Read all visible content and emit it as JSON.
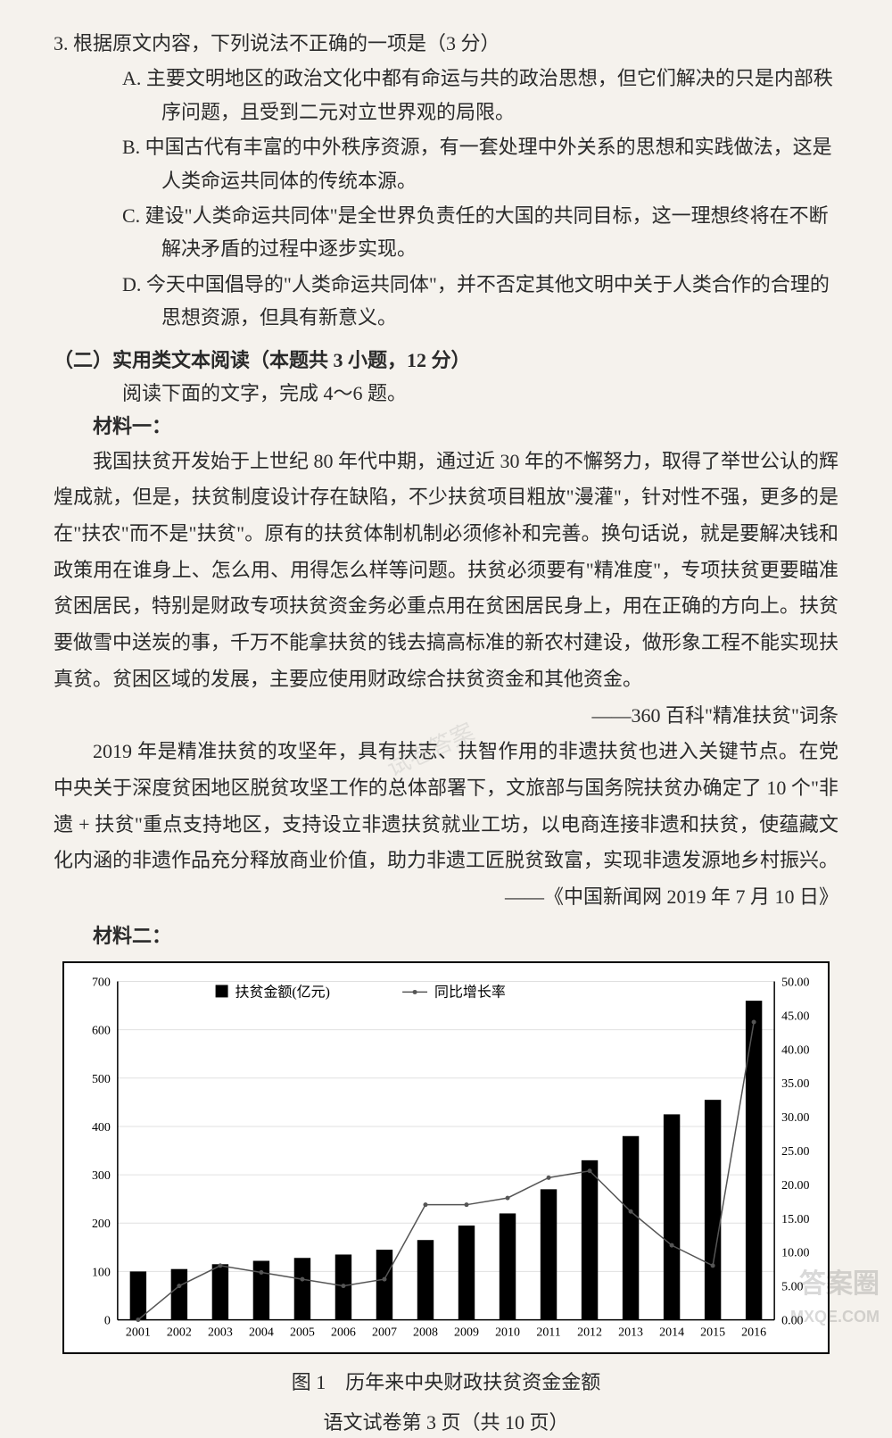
{
  "q3": {
    "stem": "3. 根据原文内容，下列说法不正确的一项是（3 分）",
    "A": "A. 主要文明地区的政治文化中都有命运与共的政治思想，但它们解决的只是内部秩序问题，且受到二元对立世界观的局限。",
    "B": "B. 中国古代有丰富的中外秩序资源，有一套处理中外关系的思想和实践做法，这是人类命运共同体的传统本源。",
    "C": "C. 建设\"人类命运共同体\"是全世界负责任的大国的共同目标，这一理想终将在不断解决矛盾的过程中逐步实现。",
    "D": "D. 今天中国倡导的\"人类命运共同体\"，并不否定其他文明中关于人类合作的合理的思想资源，但具有新意义。"
  },
  "section2": {
    "title": "（二）实用类文本阅读（本题共 3 小题，12 分）",
    "instr": "阅读下面的文字，完成 4～6 题。",
    "m1_label": "材料一：",
    "m1_p1": "我国扶贫开发始于上世纪 80 年代中期，通过近 30 年的不懈努力，取得了举世公认的辉煌成就，但是，扶贫制度设计存在缺陷，不少扶贫项目粗放\"漫灌\"，针对性不强，更多的是在\"扶农\"而不是\"扶贫\"。原有的扶贫体制机制必须修补和完善。换句话说，就是要解决钱和政策用在谁身上、怎么用、用得怎么样等问题。扶贫必须要有\"精准度\"，专项扶贫更要瞄准贫困居民，特别是财政专项扶贫资金务必重点用在贫困居民身上，用在正确的方向上。扶贫要做雪中送炭的事，千万不能拿扶贫的钱去搞高标准的新农村建设，做形象工程不能实现扶真贫。贫困区域的发展，主要应使用财政综合扶贫资金和其他资金。",
    "m1_cite1": "——360 百科\"精准扶贫\"词条",
    "m1_p2": "2019 年是精准扶贫的攻坚年，具有扶志、扶智作用的非遗扶贫也进入关键节点。在党中央关于深度贫困地区脱贫攻坚工作的总体部署下，文旅部与国务院扶贫办确定了 10 个\"非遗 + 扶贫\"重点支持地区，支持设立非遗扶贫就业工坊，以电商连接非遗和扶贫，使蕴藏文化内涵的非遗作品充分释放商业价值，助力非遗工匠脱贫致富，实现非遗发源地乡村振兴。",
    "m1_cite2": "——《中国新闻网 2019 年 7 月 10 日》",
    "m2_label": "材料二："
  },
  "chart": {
    "caption": "图 1　历年来中央财政扶贫资金金额",
    "legend_bar": "扶贫金额(亿元)",
    "legend_line": "同比增长率",
    "categories": [
      "2001",
      "2002",
      "2003",
      "2004",
      "2005",
      "2006",
      "2007",
      "2008",
      "2009",
      "2010",
      "2011",
      "2012",
      "2013",
      "2014",
      "2015",
      "2016"
    ],
    "bar_values": [
      100,
      105,
      115,
      122,
      128,
      135,
      145,
      165,
      195,
      220,
      270,
      330,
      380,
      425,
      455,
      660
    ],
    "line_values": [
      0,
      5,
      8,
      7,
      6,
      5,
      6,
      17,
      17,
      18,
      21,
      22,
      16,
      11,
      8,
      44
    ],
    "y_left": {
      "min": 0,
      "max": 700,
      "step": 100
    },
    "y_right": {
      "min": 0,
      "max": 50,
      "step": 5
    },
    "colors": {
      "bar": "#000000",
      "line": "#555555",
      "grid": "#e0e0e0",
      "axis": "#000000",
      "text": "#000000",
      "bg": "#ffffff"
    },
    "bar_width_ratio": 0.4,
    "font_size_axis": 14,
    "font_size_legend": 16
  },
  "footer": "语文试卷第 3 页（共 10 页）",
  "watermark_br_1": "答案圈",
  "watermark_br_2": "MXQE.COM",
  "watermark_mid": "试卷答案"
}
